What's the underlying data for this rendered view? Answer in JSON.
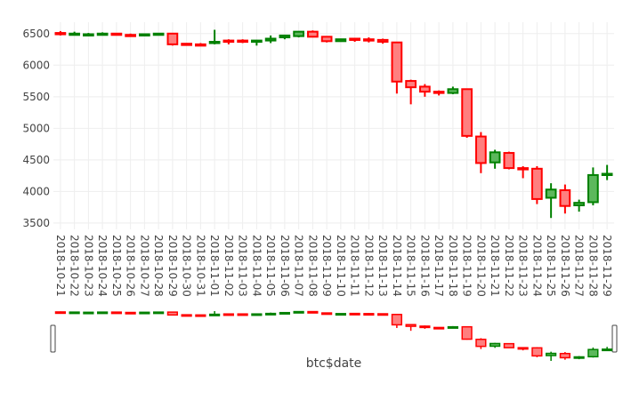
{
  "chart_data": {
    "type": "candlestick",
    "xlabel": "btc$date",
    "ylabel": "",
    "ylim": [
      3400,
      6680
    ],
    "yticks": [
      3500,
      4000,
      4500,
      5000,
      5500,
      6000,
      6500
    ],
    "grid": true,
    "legend": "none",
    "rangeslider": true,
    "colors": {
      "increasing_line": "#008000",
      "increasing_fill": "#5cb85c",
      "decreasing_line": "#ff0000",
      "decreasing_fill": "#ff7f7f",
      "grid": "#eeeeee",
      "tick_text": "#444444"
    },
    "dates": [
      "2018-10-21",
      "2018-10-22",
      "2018-10-23",
      "2018-10-24",
      "2018-10-25",
      "2018-10-26",
      "2018-10-27",
      "2018-10-28",
      "2018-10-29",
      "2018-10-30",
      "2018-10-31",
      "2018-11-01",
      "2018-11-02",
      "2018-11-03",
      "2018-11-04",
      "2018-11-05",
      "2018-11-06",
      "2018-11-07",
      "2018-11-08",
      "2018-11-09",
      "2018-11-10",
      "2018-11-11",
      "2018-11-12",
      "2018-11-13",
      "2018-11-14",
      "2018-11-15",
      "2018-11-16",
      "2018-11-17",
      "2018-11-18",
      "2018-11-19",
      "2018-11-20",
      "2018-11-21",
      "2018-11-22",
      "2018-11-23",
      "2018-11-24",
      "2018-11-25",
      "2018-11-26",
      "2018-11-27",
      "2018-11-28",
      "2018-11-29"
    ],
    "open": [
      6510,
      6490,
      6480,
      6490,
      6500,
      6480,
      6480,
      6490,
      6500,
      6340,
      6330,
      6350,
      6390,
      6390,
      6380,
      6390,
      6440,
      6460,
      6530,
      6450,
      6380,
      6420,
      6410,
      6400,
      6360,
      5750,
      5660,
      5580,
      5560,
      5620,
      4870,
      4460,
      4610,
      4370,
      4360,
      3900,
      4020,
      3780,
      3830,
      4260
    ],
    "high": [
      6540,
      6530,
      6510,
      6520,
      6510,
      6500,
      6500,
      6510,
      6510,
      6350,
      6350,
      6560,
      6410,
      6410,
      6400,
      6470,
      6470,
      6540,
      6550,
      6450,
      6420,
      6430,
      6440,
      6420,
      6370,
      5770,
      5700,
      5600,
      5660,
      5630,
      4940,
      4660,
      4630,
      4400,
      4400,
      4130,
      4110,
      3870,
      4380,
      4420
    ],
    "low": [
      6470,
      6470,
      6460,
      6470,
      6480,
      6460,
      6460,
      6470,
      6310,
      6320,
      6310,
      6330,
      6330,
      6350,
      6310,
      6350,
      6410,
      6440,
      6440,
      6360,
      6370,
      6370,
      6360,
      6340,
      5550,
      5380,
      5500,
      5520,
      5540,
      4850,
      4290,
      4360,
      4350,
      4210,
      3800,
      3580,
      3650,
      3680,
      3780,
      4180
    ],
    "close": [
      6490,
      6500,
      6490,
      6500,
      6480,
      6470,
      6490,
      6500,
      6330,
      6330,
      6320,
      6370,
      6380,
      6370,
      6390,
      6420,
      6470,
      6530,
      6450,
      6380,
      6410,
      6410,
      6390,
      6370,
      5740,
      5650,
      5580,
      5560,
      5620,
      4880,
      4450,
      4620,
      4370,
      4350,
      3880,
      4030,
      3770,
      3820,
      4260,
      4280
    ]
  }
}
